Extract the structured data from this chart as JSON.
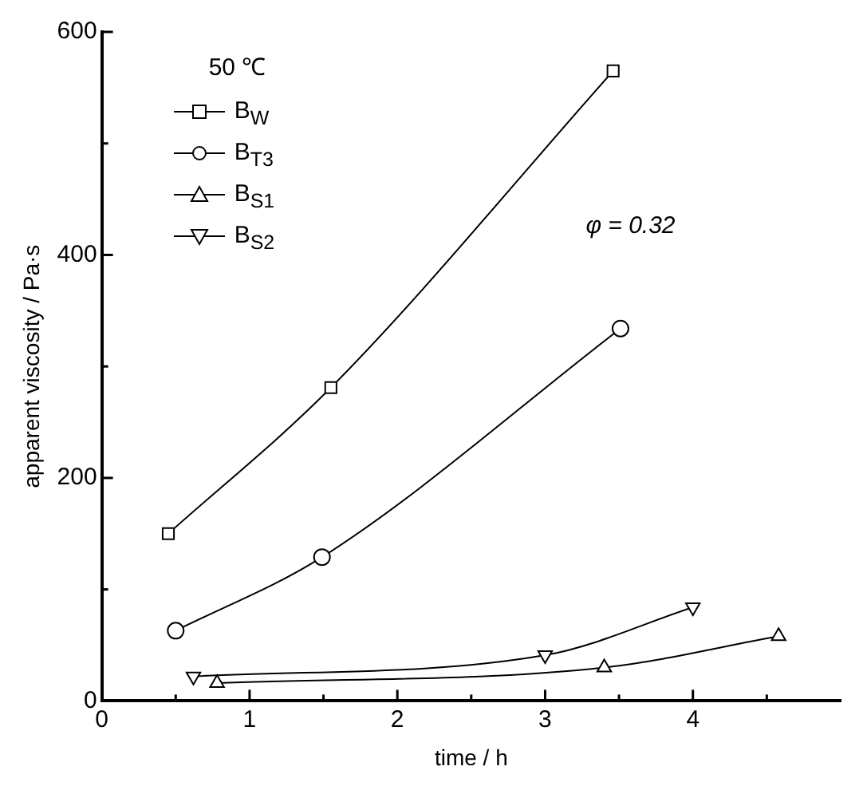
{
  "chart_data": {
    "type": "line",
    "xlabel": "time / h",
    "ylabel": "apparent viscosity / Pa·s",
    "legend_title": "50 ℃",
    "legend": "top left",
    "grid": false,
    "line_style": "solid",
    "xlim": [
      0,
      5
    ],
    "xticks": [
      0,
      {
        "value": 0.5,
        "label": null
      },
      1,
      {
        "value": 1.5,
        "label": null
      },
      2,
      {
        "value": 2.5,
        "label": null
      },
      3,
      {
        "value": 3.5,
        "label": null
      },
      4,
      {
        "value": 4.5,
        "label": null
      }
    ],
    "ylim": [
      0,
      600
    ],
    "yticks": [
      0,
      {
        "value": 100,
        "label": null
      },
      200,
      {
        "value": 300,
        "label": null
      },
      400,
      {
        "value": 500,
        "label": null
      },
      600
    ],
    "annotations": [
      "φ = 0.32"
    ],
    "series": [
      {
        "name": "B$_{W}$",
        "color": "#000000",
        "marker": "square",
        "x": [
          0.45,
          1.55,
          3.46
        ],
        "values": [
          150,
          281,
          565
        ]
      },
      {
        "name": "B$_{T3}$",
        "color": "#000000",
        "marker": "circle",
        "x": [
          0.5,
          1.49,
          3.51
        ],
        "values": [
          63,
          129,
          334
        ]
      },
      {
        "name": "B$_{S1}$",
        "color": "#000000",
        "marker": "triangle",
        "x": [
          0.78,
          3.4,
          4.58
        ],
        "values": [
          16,
          30,
          58
        ]
      },
      {
        "name": "B$_{S2}$",
        "color": "#000000",
        "marker": "triangle-down",
        "x": [
          0.62,
          3.0,
          4.0
        ],
        "values": [
          22,
          41,
          84
        ]
      }
    ]
  }
}
